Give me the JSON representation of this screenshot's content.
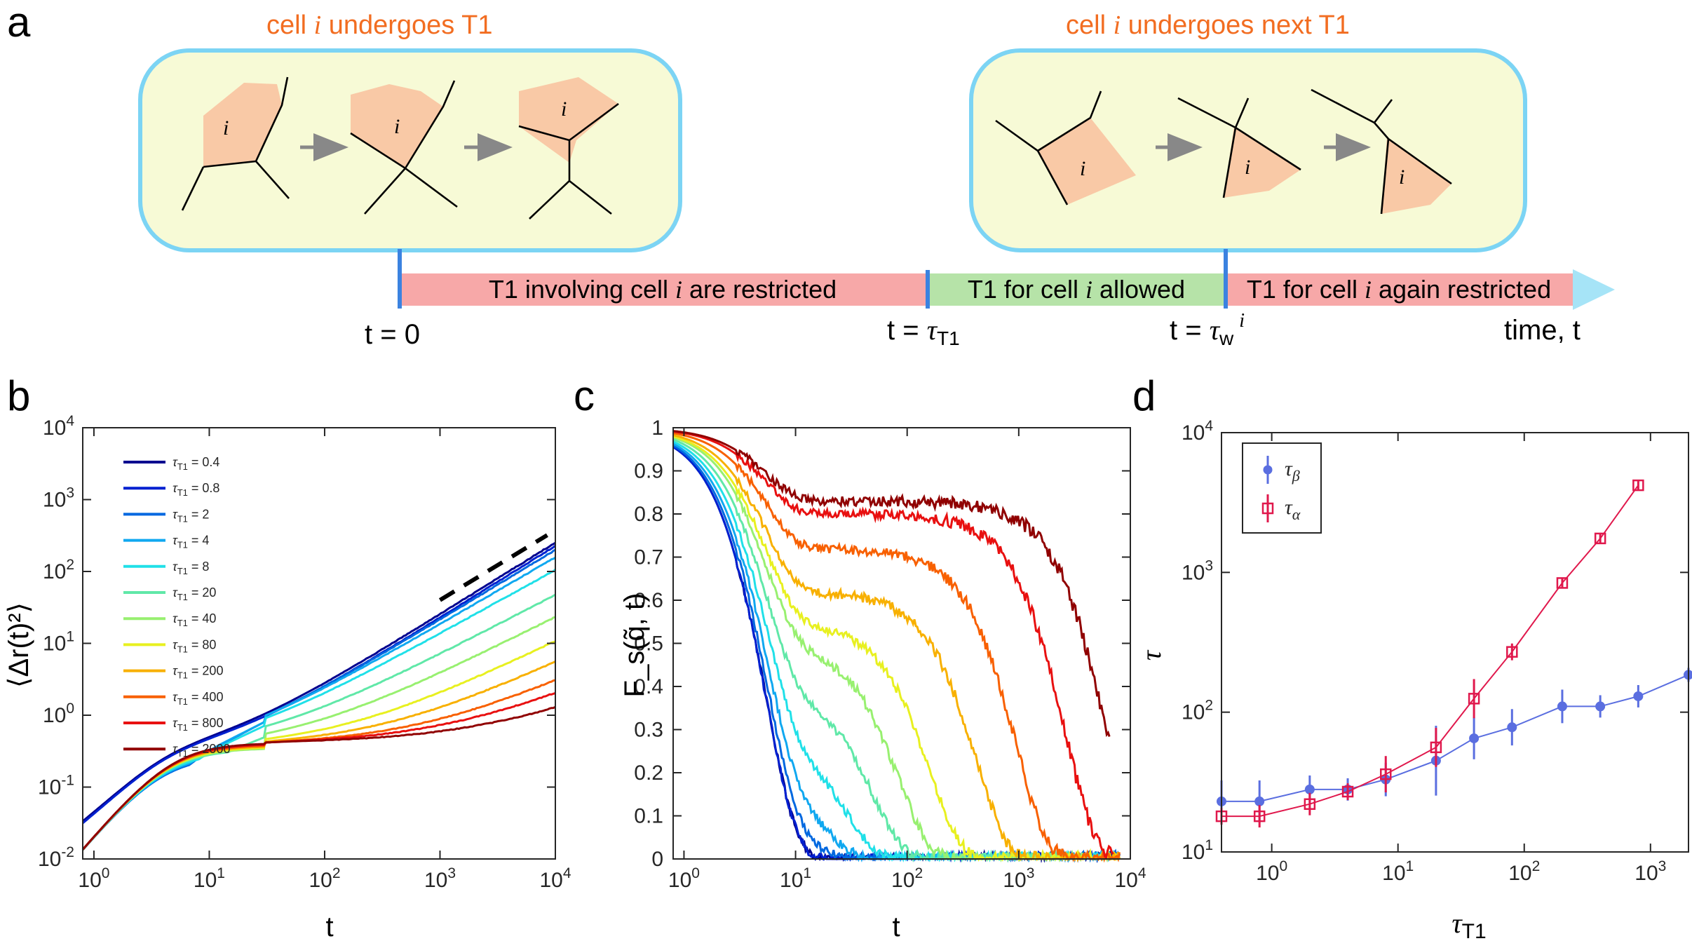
{
  "panel_a": {
    "label": "a",
    "left_box": {
      "title": "cell $i$ undergoes T1",
      "title_prefix": "cell ",
      "title_var": "i",
      "title_suffix": " undergoes T1",
      "cell_label": "i"
    },
    "right_box": {
      "title_prefix": "cell ",
      "title_var": "i",
      "title_suffix": " undergoes next T1",
      "cell_label": "i"
    },
    "timeline": {
      "segment1_prefix": "T1 involving cell ",
      "segment1_var": "i",
      "segment1_suffix": " are restricted",
      "segment2_prefix": "T1 for cell ",
      "segment2_var": "i",
      "segment2_suffix": " allowed",
      "segment3_prefix": "T1 for cell ",
      "segment3_var": "i",
      "segment3_suffix": " again restricted",
      "t0": "t = 0",
      "t1_prefix": "t = ",
      "t1_symbol": "τ",
      "t1_sub": "T1",
      "t2_prefix": "t = ",
      "t2_symbol": "τ",
      "t2_sub": "w",
      "t2_sup": "i",
      "axis_label": "time, t"
    },
    "colors": {
      "box_fill": "#f7fad6",
      "box_stroke": "#7cd4f4",
      "restricted": "#f7a8a8",
      "allowed": "#b6e3a8",
      "marker": "#3b82e0",
      "arrow_head": "#a6e4f7"
    }
  },
  "chart_data": [
    {
      "panel": "b",
      "type": "line",
      "xscale": "log",
      "yscale": "log",
      "xlim": [
        0.8,
        10000
      ],
      "ylim": [
        0.01,
        10000
      ],
      "xlabel": "t",
      "ylabel": "⟨Δr(t)²⟩",
      "x_ticks": [
        "10^0",
        "10^1",
        "10^2",
        "10^3",
        "10^4"
      ],
      "y_ticks": [
        "10^-2",
        "10^-1",
        "10^0",
        "10^1",
        "10^2",
        "10^3",
        "10^4"
      ],
      "legend_title_symbol": "τ",
      "legend_title_sub": "T1",
      "legend_position": "top-left",
      "reference_line": {
        "style": "dashed",
        "slope": 1,
        "x": [
          1000,
          8500
        ],
        "y": [
          40,
          320
        ]
      },
      "series": [
        {
          "name": "0.4",
          "color": "#00008f",
          "plateau": 0.0,
          "final": 240
        },
        {
          "name": "0.8",
          "color": "#0020d0",
          "plateau": 0.0,
          "final": 215
        },
        {
          "name": "2",
          "color": "#0068e0",
          "plateau": 0.05,
          "final": 190
        },
        {
          "name": "4",
          "color": "#10a8f0",
          "plateau": 0.12,
          "final": 150
        },
        {
          "name": "8",
          "color": "#20e0e8",
          "plateau": 0.2,
          "final": 100
        },
        {
          "name": "20",
          "color": "#60e8a8",
          "plateau": 0.3,
          "final": 45
        },
        {
          "name": "40",
          "color": "#98f070",
          "plateau": 0.35,
          "final": 22
        },
        {
          "name": "80",
          "color": "#e8f020",
          "plateau": 0.4,
          "final": 10
        },
        {
          "name": "200",
          "color": "#f8b000",
          "plateau": 0.45,
          "final": 5
        },
        {
          "name": "400",
          "color": "#f86000",
          "plateau": 0.5,
          "final": 2.6
        },
        {
          "name": "800",
          "color": "#e81010",
          "plateau": 0.55,
          "final": 1.6
        },
        {
          "name": "2000",
          "color": "#900000",
          "plateau": 0.6,
          "final": 0.85
        }
      ]
    },
    {
      "panel": "c",
      "type": "line",
      "xscale": "log",
      "yscale": "linear",
      "xlim": [
        0.8,
        10000
      ],
      "ylim": [
        0,
        1
      ],
      "xlabel": "t",
      "ylabel": "F_s(q̃, t)",
      "x_ticks": [
        "10^0",
        "10^1",
        "10^2",
        "10^3",
        "10^4"
      ],
      "y_ticks": [
        "0",
        "0.1",
        "0.2",
        "0.3",
        "0.4",
        "0.5",
        "0.6",
        "0.7",
        "0.8",
        "0.9",
        "1"
      ],
      "series": [
        {
          "name": "0.4",
          "color": "#00008f",
          "plateau": 0.0,
          "tau_alpha": 12,
          "end_t": 8000
        },
        {
          "name": "0.8",
          "color": "#0020d0",
          "plateau": 0.0,
          "tau_alpha": 11,
          "end_t": 8000
        },
        {
          "name": "2",
          "color": "#0068e0",
          "plateau": 0.1,
          "tau_alpha": 14,
          "end_t": 8000
        },
        {
          "name": "4",
          "color": "#10a8f0",
          "plateau": 0.2,
          "tau_alpha": 18,
          "end_t": 8000
        },
        {
          "name": "8",
          "color": "#20e0e8",
          "plateau": 0.3,
          "tau_alpha": 28,
          "end_t": 8000
        },
        {
          "name": "20",
          "color": "#60e8a8",
          "plateau": 0.4,
          "tau_alpha": 50,
          "end_t": 8000
        },
        {
          "name": "40",
          "color": "#98f070",
          "plateau": 0.5,
          "tau_alpha": 85,
          "end_t": 8000
        },
        {
          "name": "80",
          "color": "#e8f020",
          "plateau": 0.55,
          "tau_alpha": 160,
          "end_t": 8000
        },
        {
          "name": "200",
          "color": "#f8b000",
          "plateau": 0.62,
          "tau_alpha": 420,
          "end_t": 8000
        },
        {
          "name": "400",
          "color": "#f86000",
          "plateau": 0.72,
          "tau_alpha": 950,
          "end_t": 8000
        },
        {
          "name": "800",
          "color": "#e81010",
          "plateau": 0.8,
          "tau_alpha": 2600,
          "end_t": 7000
        },
        {
          "name": "2000",
          "color": "#900000",
          "plateau": 0.83,
          "tau_alpha": 6000,
          "end_t": 6500
        }
      ]
    },
    {
      "panel": "d",
      "type": "scatter",
      "xscale": "log",
      "yscale": "log",
      "xlim": [
        0.4,
        2000
      ],
      "ylim": [
        10,
        10000
      ],
      "xlabel_symbol": "τ",
      "xlabel_sub": "T1",
      "ylabel": "τ",
      "x_ticks": [
        "10^0",
        "10^1",
        "10^2",
        "10^3"
      ],
      "y_ticks": [
        "10^1",
        "10^2",
        "10^3",
        "10^4"
      ],
      "legend_position": "top-left",
      "series": [
        {
          "name": "τβ",
          "symbol": "τ",
          "sub": "β",
          "marker": "circle",
          "color": "#5a6ee0",
          "x": [
            0.4,
            0.8,
            2,
            4,
            8,
            20,
            40,
            80,
            200,
            400,
            800,
            2000
          ],
          "y": [
            23,
            23,
            28,
            28,
            33,
            45,
            65,
            78,
            110,
            110,
            130,
            185
          ],
          "err": [
            0.15,
            0.15,
            0.1,
            0.08,
            0.12,
            0.25,
            0.15,
            0.13,
            0.12,
            0.08,
            0.08,
            0.05
          ]
        },
        {
          "name": "τα",
          "symbol": "τ",
          "sub": "α",
          "marker": "square",
          "color": "#e0184c",
          "x": [
            0.4,
            0.8,
            2,
            4,
            8,
            20,
            40,
            80,
            200,
            400,
            800
          ],
          "y": [
            18,
            18,
            22,
            27,
            36,
            56,
            125,
            270,
            840,
            1750,
            4200
          ],
          "err": [
            0.06,
            0.08,
            0.08,
            0.06,
            0.13,
            0.14,
            0.14,
            0.06,
            0.04,
            0.04,
            0.03
          ]
        }
      ]
    }
  ]
}
